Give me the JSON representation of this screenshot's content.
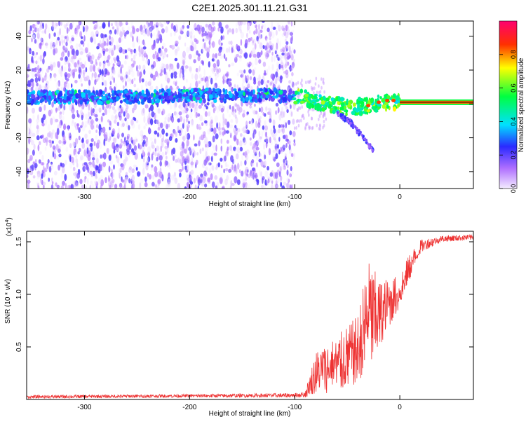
{
  "title": "C2E1.2025.301.11.21.G31",
  "chart_data": [
    {
      "type": "heatmap",
      "xlabel": "Height of straight line (km)",
      "ylabel": "Frequency (Hz)",
      "xlim": [
        -355,
        70
      ],
      "ylim": [
        -50,
        49
      ],
      "xticks": [
        -300,
        -200,
        -100,
        0
      ],
      "yticks": [
        -40,
        -20,
        0,
        20,
        40
      ],
      "signal_ridge": [
        {
          "x": -355,
          "y": 4
        },
        {
          "x": -300,
          "y": 4
        },
        {
          "x": -250,
          "y": 4
        },
        {
          "x": -200,
          "y": 5
        },
        {
          "x": -150,
          "y": 5
        },
        {
          "x": -110,
          "y": 5
        },
        {
          "x": -90,
          "y": 3
        },
        {
          "x": -70,
          "y": 0
        },
        {
          "x": -50,
          "y": -2
        },
        {
          "x": -30,
          "y": -1
        },
        {
          "x": -15,
          "y": 1
        },
        {
          "x": 0,
          "y": 1
        },
        {
          "x": 70,
          "y": 1
        }
      ],
      "descending_branch": [
        {
          "x": -60,
          "y": -5
        },
        {
          "x": -45,
          "y": -12
        },
        {
          "x": -35,
          "y": -20
        },
        {
          "x": -25,
          "y": -28
        }
      ],
      "colorbar": {
        "label": "Normalized spectral amplitude",
        "range": [
          0,
          1
        ],
        "ticks": [
          "0.0",
          "0.2",
          "0.4",
          "0.6",
          "0.8"
        ],
        "colors": [
          "#f0e6ff",
          "#8a2be2",
          "#2020ff",
          "#00ffff",
          "#00ff40",
          "#ffff00",
          "#ff0000",
          "#ff0080"
        ]
      }
    },
    {
      "type": "line",
      "xlabel": "Height of straight line (km)",
      "ylabel": "SNR (10 * v/v)",
      "scale_note": "(x10",
      "scale_exp": "4",
      "xlim": [
        -355,
        70
      ],
      "ylim": [
        0,
        1.6
      ],
      "xticks": [
        -300,
        -200,
        -100,
        0
      ],
      "yticks": [
        "0.5",
        "1.0",
        "1.5"
      ],
      "line_color": "#ee3333",
      "envelope": [
        {
          "x": -355,
          "low": 0.01,
          "high": 0.04
        },
        {
          "x": -200,
          "low": 0.02,
          "high": 0.05
        },
        {
          "x": -100,
          "low": 0.02,
          "high": 0.06
        },
        {
          "x": -90,
          "low": 0.02,
          "high": 0.08
        },
        {
          "x": -80,
          "low": 0.05,
          "high": 0.45
        },
        {
          "x": -70,
          "low": 0.05,
          "high": 0.55
        },
        {
          "x": -55,
          "low": 0.1,
          "high": 0.65
        },
        {
          "x": -40,
          "low": 0.15,
          "high": 0.8
        },
        {
          "x": -30,
          "low": 0.3,
          "high": 1.35
        },
        {
          "x": -20,
          "low": 0.45,
          "high": 1.15
        },
        {
          "x": -10,
          "low": 0.7,
          "high": 1.15
        },
        {
          "x": 0,
          "low": 0.85,
          "high": 1.2
        },
        {
          "x": 10,
          "low": 1.15,
          "high": 1.4
        },
        {
          "x": 20,
          "low": 1.4,
          "high": 1.52
        },
        {
          "x": 40,
          "low": 1.5,
          "high": 1.56
        },
        {
          "x": 70,
          "low": 1.52,
          "high": 1.57
        }
      ]
    }
  ]
}
